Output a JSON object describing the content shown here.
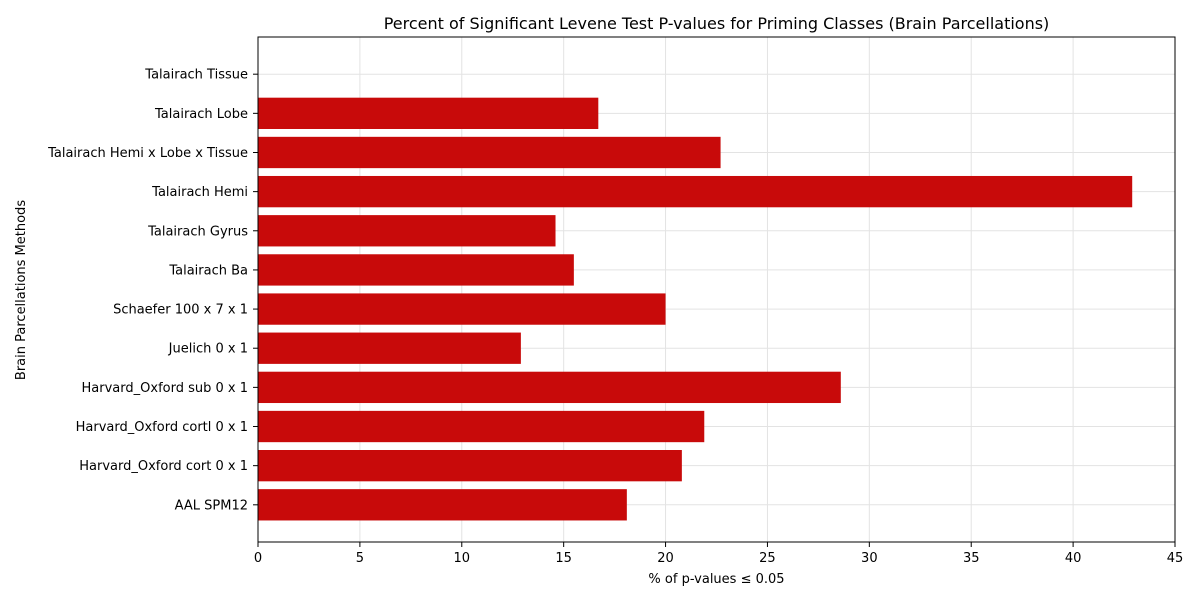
{
  "chart_data": {
    "type": "bar",
    "orientation": "horizontal",
    "title": "Percent of Significant Levene Test P-values for Priming Classes (Brain Parcellations)",
    "xlabel": "% of p-values ≤ 0.05",
    "ylabel": "Brain Parcellations Methods",
    "categories": [
      "AAL SPM12",
      "Harvard_Oxford cort 0 x 1",
      "Harvard_Oxford cortl 0 x 1",
      "Harvard_Oxford sub 0 x 1",
      "Juelich 0 x 1",
      "Schaefer 100 x 7 x 1",
      "Talairach Ba",
      "Talairach Gyrus",
      "Talairach Hemi",
      "Talairach Hemi x Lobe x Tissue",
      "Talairach Lobe",
      "Talairach Tissue"
    ],
    "values": [
      18.1,
      20.8,
      21.9,
      28.6,
      12.9,
      20.0,
      15.5,
      14.6,
      42.9,
      22.7,
      16.7,
      0.0
    ],
    "xlim": [
      0,
      45
    ],
    "xticks": [
      0,
      5,
      10,
      15,
      20,
      25,
      30,
      35,
      40,
      45
    ],
    "grid": true,
    "bar_color": "#c80a0a"
  }
}
